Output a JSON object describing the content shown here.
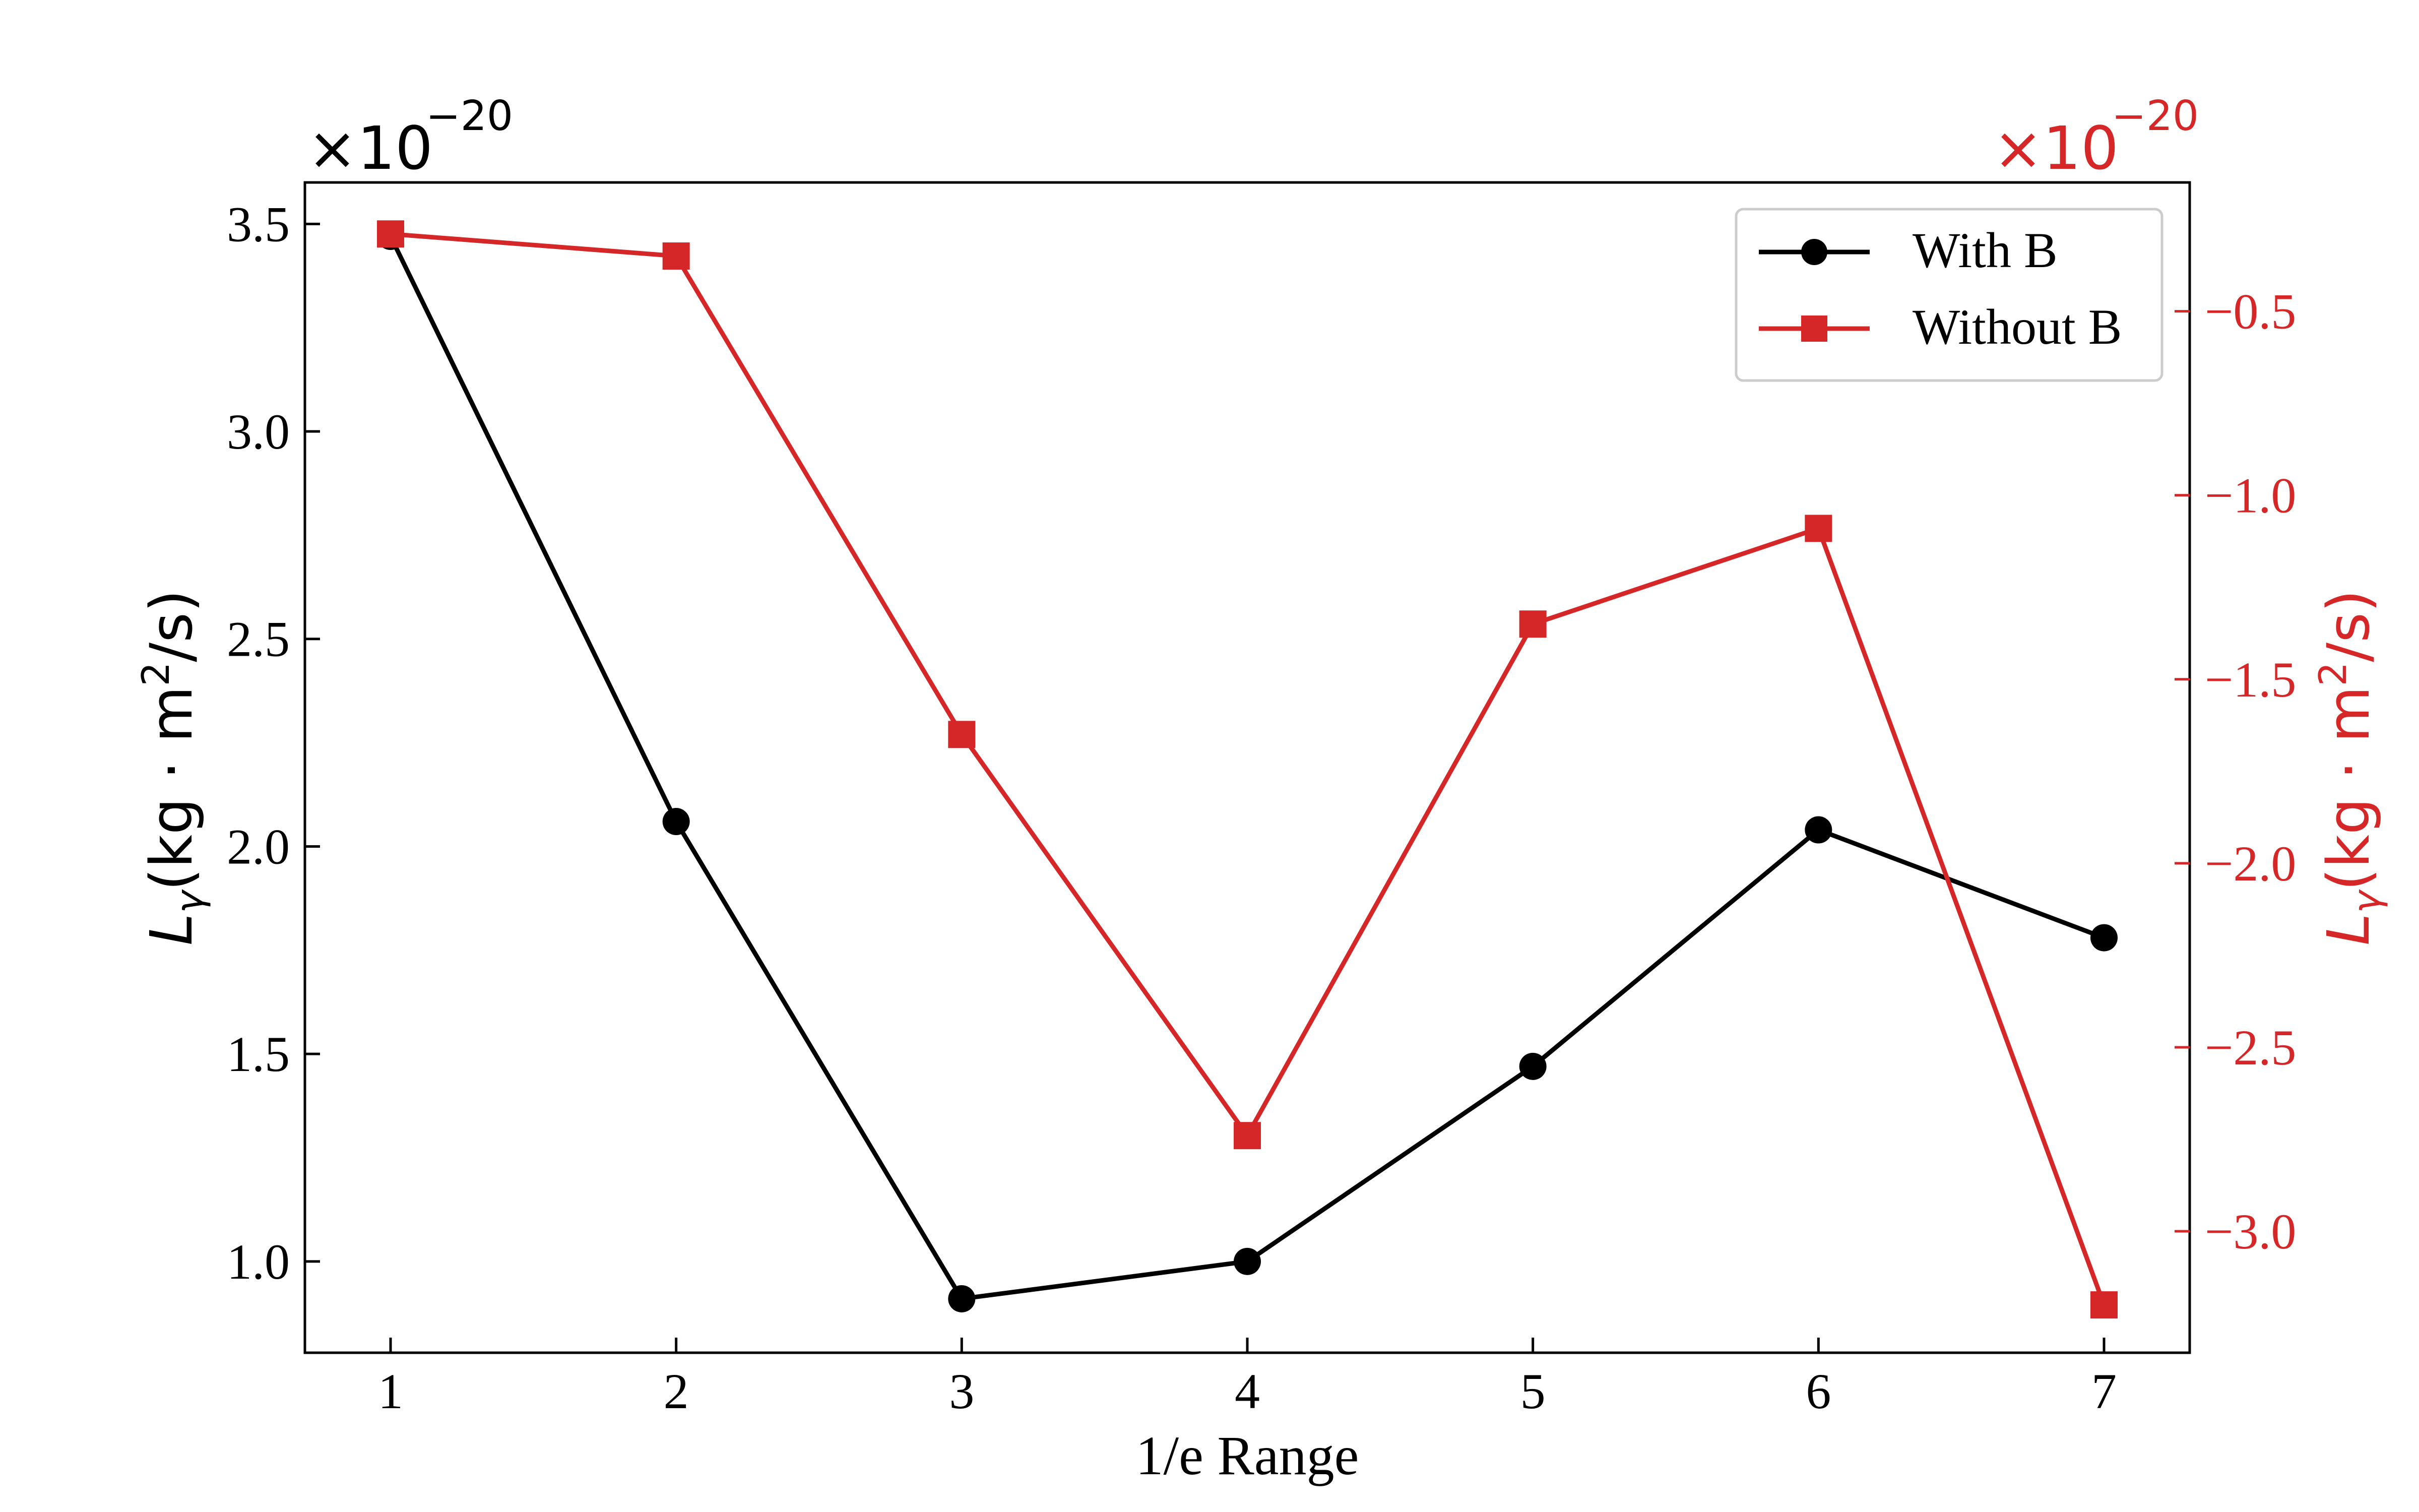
{
  "chart_data": {
    "type": "line",
    "xlabel": "1/e Range",
    "x": [
      1,
      2,
      3,
      4,
      5,
      6,
      7
    ],
    "xticks": [
      "1",
      "2",
      "3",
      "4",
      "5",
      "6",
      "7"
    ],
    "xlim": [
      0.7,
      7.3
    ],
    "left_axis": {
      "ylabel_main": "L",
      "ylabel_sub": "γ",
      "ylabel_rest": "(kg · m",
      "ylabel_sup": "2",
      "ylabel_tail": "/s)",
      "ylim": [
        0.78,
        3.6
      ],
      "ticks": [
        1.0,
        1.5,
        2.0,
        2.5,
        3.0,
        3.5
      ],
      "tick_labels": [
        "1.0",
        "1.5",
        "2.0",
        "2.5",
        "3.0",
        "3.5"
      ],
      "offset_base": "×10",
      "offset_exp": "−20",
      "color": "#000000"
    },
    "right_axis": {
      "ylabel_main": "L",
      "ylabel_sub": "γ",
      "ylabel_rest": "(kg · m",
      "ylabel_sup": "2",
      "ylabel_tail": "/s)",
      "ylim": [
        -3.33,
        -0.15
      ],
      "ticks": [
        -0.5,
        -1.0,
        -1.5,
        -2.0,
        -2.5,
        -3.0
      ],
      "tick_labels": [
        "−0.5",
        "−1.0",
        "−1.5",
        "−2.0",
        "−2.5",
        "−3.0"
      ],
      "offset_base": "×10",
      "offset_exp": "−20",
      "color": "#d62728"
    },
    "series": [
      {
        "name": "With B",
        "axis": "left",
        "marker": "circle",
        "color": "#000000",
        "values": [
          3.47,
          2.06,
          0.91,
          1.0,
          1.47,
          2.04,
          1.78
        ]
      },
      {
        "name": "Without B",
        "axis": "right",
        "marker": "square",
        "color": "#d62728",
        "values": [
          -0.29,
          -0.35,
          -1.65,
          -2.74,
          -1.35,
          -1.09,
          -3.2
        ]
      }
    ],
    "legend": {
      "position": "top-right",
      "entries": [
        "With B",
        "Without B"
      ]
    }
  }
}
